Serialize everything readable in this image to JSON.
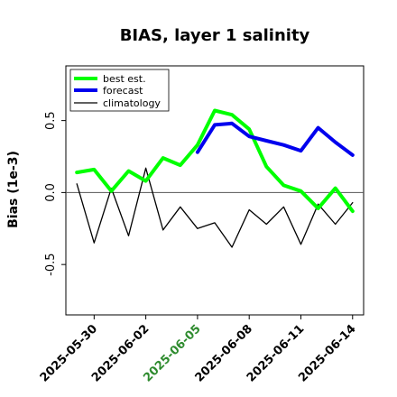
{
  "chart_data": {
    "type": "line",
    "title": "BIAS, layer 1 salinity",
    "xlabel": "",
    "ylabel": "Bias (1e-3)",
    "x_ticks": [
      "2025-05-30",
      "2025-06-02",
      "2025-06-05",
      "2025-06-08",
      "2025-06-11",
      "2025-06-14"
    ],
    "highlight_tick": "2025-06-05",
    "highlight_color": "#2e8b2e",
    "ylim": [
      -0.85,
      0.88
    ],
    "y_ticks": [
      -0.5,
      0.0,
      0.5
    ],
    "y_tick_labels": [
      "-0.5",
      "0.0",
      "0.5"
    ],
    "zero_line": true,
    "grid": false,
    "legend_position": "top-left",
    "series": [
      {
        "name": "best est.",
        "color": "#00ff00",
        "width": 4,
        "x": [
          "2025-05-29",
          "2025-05-30",
          "2025-05-31",
          "2025-06-01",
          "2025-06-02",
          "2025-06-03",
          "2025-06-04",
          "2025-06-05",
          "2025-06-06",
          "2025-06-07",
          "2025-06-08",
          "2025-06-09",
          "2025-06-10",
          "2025-06-11",
          "2025-06-12",
          "2025-06-13",
          "2025-06-14"
        ],
        "values": [
          0.14,
          0.16,
          0.01,
          0.15,
          0.08,
          0.24,
          0.19,
          0.33,
          0.57,
          0.54,
          0.44,
          0.18,
          0.05,
          0.01,
          -0.11,
          0.03,
          -0.13
        ]
      },
      {
        "name": "forecast",
        "color": "#0000ee",
        "width": 4,
        "x": [
          "2025-06-05",
          "2025-06-06",
          "2025-06-07",
          "2025-06-08",
          "2025-06-09",
          "2025-06-10",
          "2025-06-11",
          "2025-06-12",
          "2025-06-13",
          "2025-06-14"
        ],
        "values": [
          0.28,
          0.47,
          0.48,
          0.39,
          0.36,
          0.33,
          0.29,
          0.45,
          0.35,
          0.26
        ]
      },
      {
        "name": "climatology",
        "color": "#000000",
        "width": 1.3,
        "x": [
          "2025-05-29",
          "2025-05-30",
          "2025-05-31",
          "2025-06-01",
          "2025-06-02",
          "2025-06-03",
          "2025-06-04",
          "2025-06-05",
          "2025-06-06",
          "2025-06-07",
          "2025-06-08",
          "2025-06-09",
          "2025-06-10",
          "2025-06-11",
          "2025-06-12",
          "2025-06-13",
          "2025-06-14"
        ],
        "values": [
          0.06,
          -0.35,
          0.03,
          -0.3,
          0.17,
          -0.26,
          -0.1,
          -0.25,
          -0.21,
          -0.38,
          -0.12,
          -0.22,
          -0.1,
          -0.36,
          -0.08,
          -0.22,
          -0.07
        ]
      }
    ]
  }
}
